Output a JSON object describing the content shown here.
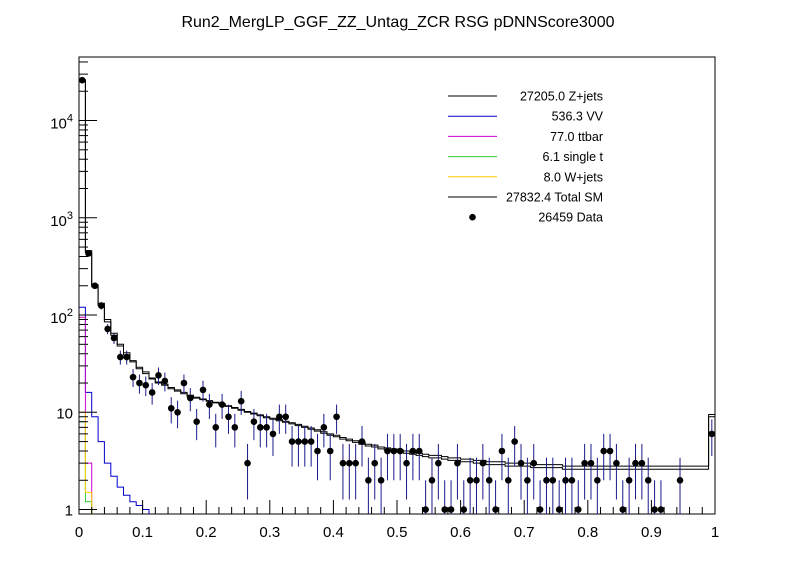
{
  "chart_data": {
    "type": "line",
    "title": "Run2_MergLP_GGF_ZZ_Untag_ZCR RSG  pDNNScore3000",
    "xlabel": "",
    "ylabel": "",
    "xlim": [
      0,
      1
    ],
    "ylim": [
      0.9,
      45000
    ],
    "log_y": true,
    "grid": false,
    "legend_position": "top-right",
    "x_ticks": [
      0,
      0.1,
      0.2,
      0.3,
      0.4,
      0.5,
      0.6,
      0.7,
      0.8,
      0.9,
      1
    ],
    "x_tick_labels": [
      "0",
      "0.1",
      "0.2",
      "0.3",
      "0.4",
      "0.5",
      "0.6",
      "0.7",
      "0.8",
      "0.9",
      "1"
    ],
    "y_ticks": [
      1,
      10,
      100,
      1000,
      10000
    ],
    "y_tick_labels": [
      {
        "base": "1",
        "exp": ""
      },
      {
        "base": "10",
        "exp": ""
      },
      {
        "base": "10",
        "exp": "2"
      },
      {
        "base": "10",
        "exp": "3"
      },
      {
        "base": "10",
        "exp": "4"
      }
    ],
    "bin_width": 0.01,
    "legend": [
      {
        "label": "27205.0 Z+jets",
        "color": "#000000",
        "kind": "line"
      },
      {
        "label": "536.3 VV",
        "color": "#0000cc",
        "kind": "line"
      },
      {
        "label": "77.0 ttbar",
        "color": "#cc00cc",
        "kind": "line"
      },
      {
        "label": "6.1 single t",
        "color": "#33cc33",
        "kind": "line"
      },
      {
        "label": "8.0 W+jets",
        "color": "#ffcc00",
        "kind": "line"
      },
      {
        "label": "27832.4 Total SM",
        "color": "#000000",
        "kind": "line"
      },
      {
        "label": "26459 Data",
        "color": "#000000",
        "kind": "marker"
      }
    ],
    "series": [
      {
        "name": "Z+jets",
        "color": "#000000",
        "values": [
          26000,
          440,
          195,
          125,
          85,
          62,
          48,
          39,
          33,
          28,
          25,
          22,
          20,
          19,
          17.5,
          16.5,
          15.5,
          14.5,
          14,
          13.5,
          13,
          12.5,
          12,
          11.5,
          11,
          10.5,
          10,
          9.6,
          9.2,
          8.8,
          8.5,
          8.2,
          7.9,
          7.6,
          7.3,
          7.0,
          6.7,
          6.4,
          6.1,
          5.8,
          5.6,
          5.3,
          5.1,
          4.9,
          4.7,
          4.5,
          4.4,
          4.2,
          4.1,
          4.0,
          3.9,
          3.8,
          3.7,
          3.6,
          3.5,
          3.4,
          3.4,
          3.3,
          3.2,
          3.2,
          3.1,
          3.1,
          3.0,
          3.0,
          2.9,
          2.9,
          2.9,
          2.8,
          2.8,
          2.8,
          2.8,
          2.7,
          2.7,
          2.7,
          2.7,
          2.7,
          2.6,
          2.6,
          2.6,
          2.6,
          2.6,
          2.6,
          2.6,
          2.6,
          2.6,
          2.6,
          2.6,
          2.6,
          2.6,
          2.6,
          2.6,
          2.6,
          2.6,
          2.6,
          2.6,
          2.6,
          2.6,
          2.6,
          2.6,
          9.0
        ]
      },
      {
        "name": "VV",
        "color": "#0000cc",
        "values": [
          120,
          16,
          9,
          5,
          3,
          2.2,
          1.7,
          1.4,
          1.2,
          1.1,
          1.0
        ]
      },
      {
        "name": "ttbar",
        "color": "#cc00cc",
        "values": [
          95,
          3
        ]
      },
      {
        "name": "single t",
        "color": "#33cc33",
        "values": [
          8,
          1.2
        ]
      },
      {
        "name": "W+jets",
        "color": "#ffcc00",
        "values": [
          10,
          1.5
        ]
      },
      {
        "name": "Total SM",
        "color": "#000000",
        "values": [
          26300,
          460,
          205,
          132,
          90,
          65,
          50,
          41,
          34,
          29,
          26,
          22.5,
          20.5,
          19.5,
          18,
          17,
          16,
          15,
          14.3,
          13.7,
          13.2,
          12.7,
          12.2,
          11.7,
          11.2,
          10.7,
          10.2,
          9.8,
          9.4,
          9.0,
          8.7,
          8.4,
          8.1,
          7.8,
          7.5,
          7.2,
          6.9,
          6.6,
          6.3,
          6.0,
          5.8,
          5.5,
          5.3,
          5.1,
          4.9,
          4.7,
          4.6,
          4.4,
          4.3,
          4.2,
          4.1,
          4.0,
          3.9,
          3.8,
          3.7,
          3.6,
          3.6,
          3.5,
          3.4,
          3.4,
          3.3,
          3.3,
          3.2,
          3.2,
          3.1,
          3.1,
          3.1,
          3.0,
          3.0,
          3.0,
          3.0,
          2.9,
          2.9,
          2.9,
          2.9,
          2.9,
          2.8,
          2.8,
          2.8,
          2.8,
          2.8,
          2.8,
          2.8,
          2.8,
          2.8,
          2.8,
          2.8,
          2.8,
          2.8,
          2.8,
          2.8,
          2.8,
          2.8,
          2.8,
          2.8,
          2.8,
          2.8,
          2.8,
          2.8,
          9.5
        ]
      },
      {
        "name": "Data",
        "color": "#000000",
        "kind": "points",
        "points": [
          {
            "x": 0.005,
            "y": 26000
          },
          {
            "x": 0.015,
            "y": 430
          },
          {
            "x": 0.025,
            "y": 200
          },
          {
            "x": 0.035,
            "y": 125
          },
          {
            "x": 0.045,
            "y": 72
          },
          {
            "x": 0.055,
            "y": 58
          },
          {
            "x": 0.065,
            "y": 37
          },
          {
            "x": 0.075,
            "y": 37
          },
          {
            "x": 0.085,
            "y": 23
          },
          {
            "x": 0.095,
            "y": 20
          },
          {
            "x": 0.105,
            "y": 19
          },
          {
            "x": 0.115,
            "y": 16
          },
          {
            "x": 0.125,
            "y": 24
          },
          {
            "x": 0.135,
            "y": 21
          },
          {
            "x": 0.145,
            "y": 11
          },
          {
            "x": 0.155,
            "y": 10
          },
          {
            "x": 0.165,
            "y": 20
          },
          {
            "x": 0.175,
            "y": 14
          },
          {
            "x": 0.185,
            "y": 8
          },
          {
            "x": 0.195,
            "y": 17
          },
          {
            "x": 0.205,
            "y": 12
          },
          {
            "x": 0.215,
            "y": 7
          },
          {
            "x": 0.225,
            "y": 12
          },
          {
            "x": 0.235,
            "y": 9
          },
          {
            "x": 0.245,
            "y": 7
          },
          {
            "x": 0.255,
            "y": 13
          },
          {
            "x": 0.265,
            "y": 3
          },
          {
            "x": 0.275,
            "y": 8
          },
          {
            "x": 0.285,
            "y": 7
          },
          {
            "x": 0.295,
            "y": 7
          },
          {
            "x": 0.305,
            "y": 6
          },
          {
            "x": 0.315,
            "y": 9
          },
          {
            "x": 0.325,
            "y": 9
          },
          {
            "x": 0.335,
            "y": 5
          },
          {
            "x": 0.345,
            "y": 5
          },
          {
            "x": 0.355,
            "y": 5
          },
          {
            "x": 0.365,
            "y": 5
          },
          {
            "x": 0.375,
            "y": 4
          },
          {
            "x": 0.385,
            "y": 7
          },
          {
            "x": 0.395,
            "y": 4
          },
          {
            "x": 0.405,
            "y": 9
          },
          {
            "x": 0.415,
            "y": 3
          },
          {
            "x": 0.425,
            "y": 3
          },
          {
            "x": 0.435,
            "y": 3
          },
          {
            "x": 0.445,
            "y": 5
          },
          {
            "x": 0.455,
            "y": 2
          },
          {
            "x": 0.465,
            "y": 3
          },
          {
            "x": 0.475,
            "y": 2
          },
          {
            "x": 0.485,
            "y": 4
          },
          {
            "x": 0.495,
            "y": 4
          },
          {
            "x": 0.505,
            "y": 4
          },
          {
            "x": 0.515,
            "y": 3
          },
          {
            "x": 0.525,
            "y": 4
          },
          {
            "x": 0.535,
            "y": 4
          },
          {
            "x": 0.545,
            "y": 1
          },
          {
            "x": 0.555,
            "y": 2
          },
          {
            "x": 0.565,
            "y": 3
          },
          {
            "x": 0.575,
            "y": 1
          },
          {
            "x": 0.585,
            "y": 1
          },
          {
            "x": 0.595,
            "y": 3
          },
          {
            "x": 0.605,
            "y": 1
          },
          {
            "x": 0.615,
            "y": 2
          },
          {
            "x": 0.625,
            "y": 2
          },
          {
            "x": 0.635,
            "y": 3
          },
          {
            "x": 0.645,
            "y": 2
          },
          {
            "x": 0.655,
            "y": 1
          },
          {
            "x": 0.665,
            "y": 4
          },
          {
            "x": 0.675,
            "y": 2
          },
          {
            "x": 0.685,
            "y": 5
          },
          {
            "x": 0.695,
            "y": 3
          },
          {
            "x": 0.705,
            "y": 2
          },
          {
            "x": 0.715,
            "y": 3
          },
          {
            "x": 0.725,
            "y": 1
          },
          {
            "x": 0.735,
            "y": 2
          },
          {
            "x": 0.745,
            "y": 2
          },
          {
            "x": 0.755,
            "y": 1
          },
          {
            "x": 0.765,
            "y": 2
          },
          {
            "x": 0.775,
            "y": 2
          },
          {
            "x": 0.785,
            "y": 1
          },
          {
            "x": 0.795,
            "y": 3
          },
          {
            "x": 0.805,
            "y": 3
          },
          {
            "x": 0.815,
            "y": 2
          },
          {
            "x": 0.825,
            "y": 4
          },
          {
            "x": 0.835,
            "y": 4
          },
          {
            "x": 0.845,
            "y": 3
          },
          {
            "x": 0.855,
            "y": 1
          },
          {
            "x": 0.865,
            "y": 2
          },
          {
            "x": 0.875,
            "y": 3
          },
          {
            "x": 0.885,
            "y": 3
          },
          {
            "x": 0.895,
            "y": 2
          },
          {
            "x": 0.905,
            "y": 1
          },
          {
            "x": 0.915,
            "y": 1
          },
          {
            "x": 0.945,
            "y": 2
          },
          {
            "x": 0.995,
            "y": 6
          }
        ]
      }
    ]
  }
}
